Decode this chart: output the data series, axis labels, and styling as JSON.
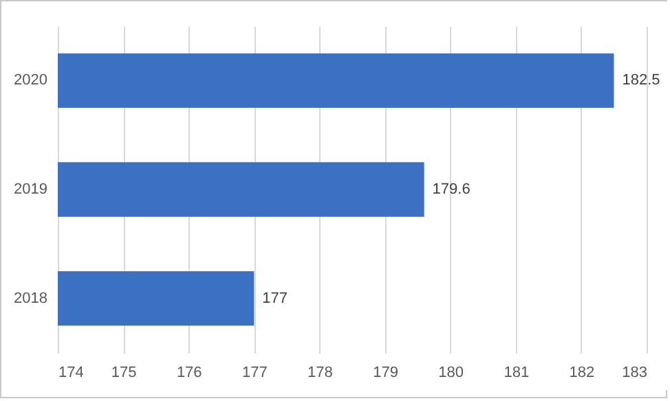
{
  "chart_data": {
    "type": "bar",
    "orientation": "horizontal",
    "categories": [
      "2020",
      "2019",
      "2018"
    ],
    "values": [
      182.5,
      179.6,
      177
    ],
    "color": "#3b70c2",
    "xlim": [
      174,
      183
    ],
    "xticks": [
      174,
      175,
      176,
      177,
      178,
      179,
      180,
      181,
      182,
      183
    ],
    "grid": "x",
    "data_labels": true
  }
}
